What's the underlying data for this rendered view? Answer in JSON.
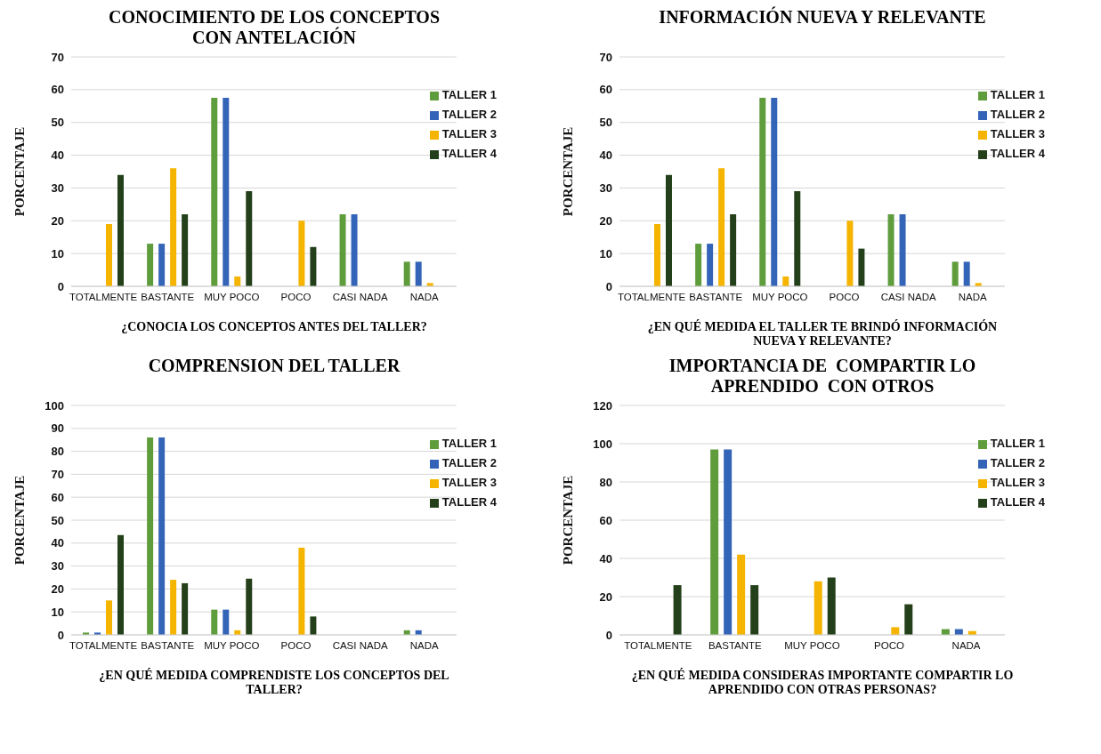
{
  "chart_data": [
    {
      "type": "bar",
      "title": "CONOCIMIENTO DE LOS CONCEPTOS CON ANTELACIÓN",
      "xlabel": "¿CONOCIA LOS CONCEPTOS ANTES DEL TALLER?",
      "ylabel": "PORCENTAJE",
      "categories": [
        "TOTALMENTE",
        "BASTANTE",
        "MUY POCO",
        "POCO",
        "CASI NADA",
        "NADA"
      ],
      "series": [
        {
          "name": "TALLER 1",
          "color": "#5e9c3c",
          "values": [
            0,
            13,
            57.5,
            0,
            22,
            7.5
          ]
        },
        {
          "name": "TALLER 2",
          "color": "#3464b8",
          "values": [
            0,
            13,
            57.5,
            0,
            22,
            7.5
          ]
        },
        {
          "name": "TALLER 3",
          "color": "#f4b400",
          "values": [
            19,
            36,
            3,
            20,
            0,
            1
          ]
        },
        {
          "name": "TALLER 4",
          "color": "#24401a",
          "values": [
            34,
            22,
            29,
            12,
            0,
            0
          ]
        }
      ],
      "ylim": [
        0,
        70
      ],
      "yticks": [
        0,
        10,
        20,
        30,
        40,
        50,
        60,
        70
      ],
      "grid": "y",
      "legend": "top right"
    },
    {
      "type": "bar",
      "title": "INFORMACIÓN NUEVA Y RELEVANTE",
      "xlabel": "¿EN QUÉ MEDIDA EL TALLER TE BRINDÓ INFORMACIÓN NUEVA Y RELEVANTE?",
      "ylabel": "PORCENTAJE",
      "categories": [
        "TOTALMENTE",
        "BASTANTE",
        "MUY POCO",
        "POCO",
        "CASI NADA",
        "NADA"
      ],
      "series": [
        {
          "name": "TALLER 1",
          "color": "#5e9c3c",
          "values": [
            0,
            13,
            57.5,
            0,
            22,
            7.5
          ]
        },
        {
          "name": "TALLER 2",
          "color": "#3464b8",
          "values": [
            0,
            13,
            57.5,
            0,
            22,
            7.5
          ]
        },
        {
          "name": "TALLER 3",
          "color": "#f4b400",
          "values": [
            19,
            36,
            3,
            20,
            0,
            1
          ]
        },
        {
          "name": "TALLER 4",
          "color": "#24401a",
          "values": [
            34,
            22,
            29,
            11.5,
            0,
            0
          ]
        }
      ],
      "ylim": [
        0,
        70
      ],
      "yticks": [
        0,
        10,
        20,
        30,
        40,
        50,
        60,
        70
      ],
      "grid": "y",
      "legend": "top right"
    },
    {
      "type": "bar",
      "title": "COMPRENSION DEL TALLER",
      "xlabel": "¿EN QUÉ MEDIDA COMPRENDISTE LOS CONCEPTOS DEL TALLER?",
      "ylabel": "PORCENTAJE",
      "categories": [
        "TOTALMENTE",
        "BASTANTE",
        "MUY POCO",
        "POCO",
        "CASI NADA",
        "NADA"
      ],
      "series": [
        {
          "name": "TALLER 1",
          "color": "#5e9c3c",
          "values": [
            1,
            86,
            11,
            0,
            0,
            2
          ]
        },
        {
          "name": "TALLER 2",
          "color": "#3464b8",
          "values": [
            1,
            86,
            11,
            0,
            0,
            2
          ]
        },
        {
          "name": "TALLER 3",
          "color": "#f4b400",
          "values": [
            15,
            24,
            2,
            38,
            0,
            0
          ]
        },
        {
          "name": "TALLER 4",
          "color": "#24401a",
          "values": [
            43.5,
            22.5,
            24.5,
            8,
            0,
            0
          ]
        }
      ],
      "ylim": [
        0,
        100
      ],
      "yticks": [
        0,
        10,
        20,
        30,
        40,
        50,
        60,
        70,
        80,
        90,
        100
      ],
      "grid": "y",
      "legend": "top right"
    },
    {
      "type": "bar",
      "title": "IMPORTANCIA DE  COMPARTIR LO APRENDIDO  CON OTROS",
      "xlabel": "¿EN QUÉ MEDIDA CONSIDERAS IMPORTANTE COMPARTIR LO APRENDIDO CON OTRAS PERSONAS?",
      "ylabel": "PORCENTAJE",
      "categories": [
        "TOTALMENTE",
        "BASTANTE",
        "MUY POCO",
        "POCO",
        "NADA"
      ],
      "series": [
        {
          "name": "TALLER 1",
          "color": "#5e9c3c",
          "values": [
            0,
            97,
            0,
            0,
            3
          ]
        },
        {
          "name": "TALLER 2",
          "color": "#3464b8",
          "values": [
            0,
            97,
            0,
            0,
            3
          ]
        },
        {
          "name": "TALLER 3",
          "color": "#f4b400",
          "values": [
            0,
            42,
            28,
            4,
            2
          ]
        },
        {
          "name": "TALLER 4",
          "color": "#24401a",
          "values": [
            26,
            26,
            30,
            16,
            0
          ]
        }
      ],
      "ylim": [
        0,
        120
      ],
      "yticks": [
        0,
        20,
        40,
        60,
        80,
        100,
        120
      ],
      "grid": "y",
      "legend": "top right"
    }
  ]
}
